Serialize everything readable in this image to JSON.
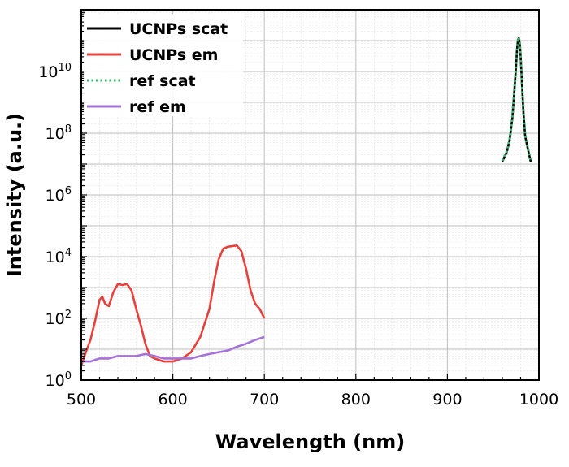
{
  "chart_data": {
    "type": "line",
    "xlabel": "Wavelength (nm)",
    "ylabel": "Intensity (a.u.)",
    "xlim": [
      500,
      1000
    ],
    "ylim": [
      1,
      1000000000000.0
    ],
    "y_scale": "log",
    "x_ticks": [
      500,
      600,
      700,
      800,
      900,
      1000
    ],
    "x_tick_labels": [
      "500",
      "600",
      "700",
      "800",
      "900",
      "1000"
    ],
    "y_ticks": [
      {
        "value": 1,
        "base": "10",
        "exp": "0"
      },
      {
        "value": 100,
        "base": "10",
        "exp": "2"
      },
      {
        "value": 10000,
        "base": "10",
        "exp": "4"
      },
      {
        "value": 1000000,
        "base": "10",
        "exp": "6"
      },
      {
        "value": 100000000,
        "base": "10",
        "exp": "8"
      },
      {
        "value": 10000000000,
        "base": "10",
        "exp": "10"
      }
    ],
    "grid": true,
    "legend_position": "top-left",
    "series": [
      {
        "name": "UCNPs scat",
        "color": "#000000",
        "style": "solid",
        "x": [
          960,
          965,
          968,
          971,
          973,
          975,
          976,
          977,
          978,
          979,
          980,
          981,
          983,
          985,
          988,
          991
        ],
        "y": [
          12000000.0,
          25000000.0,
          60000000.0,
          300000000.0,
          2000000000.0,
          15000000000.0,
          50000000000.0,
          100000000000.0,
          120000000000.0,
          80000000000.0,
          30000000000.0,
          8000000000.0,
          500000000.0,
          80000000.0,
          30000000.0,
          12000000.0
        ]
      },
      {
        "name": "UCNPs em",
        "color": "#e8413c",
        "style": "solid",
        "x": [
          500,
          505,
          510,
          515,
          520,
          523,
          526,
          530,
          535,
          540,
          545,
          550,
          555,
          560,
          565,
          570,
          575,
          580,
          590,
          600,
          610,
          620,
          630,
          640,
          645,
          650,
          655,
          660,
          665,
          670,
          675,
          680,
          685,
          690,
          695,
          700
        ],
        "y": [
          3,
          8,
          20,
          80,
          400,
          500,
          300,
          250,
          700,
          1300,
          1200,
          1300,
          800,
          200,
          60,
          15,
          6,
          5,
          4,
          4,
          5,
          8,
          25,
          200,
          1500,
          8000,
          18000,
          21000,
          22000,
          23000,
          15000,
          4000,
          800,
          300,
          200,
          100
        ]
      },
      {
        "name": "ref scat",
        "color": "#3cb371",
        "style": "dotted",
        "x": [
          960,
          965,
          968,
          971,
          973,
          975,
          976,
          977,
          978,
          979,
          980,
          981,
          983,
          985,
          988,
          991
        ],
        "y": [
          13000000.0,
          26000000.0,
          65000000.0,
          320000000.0,
          2100000000.0,
          16000000000.0,
          52000000000.0,
          105000000000.0,
          125000000000.0,
          85000000000.0,
          32000000000.0,
          8500000000.0,
          530000000.0,
          85000000.0,
          32000000.0,
          13000000.0
        ]
      },
      {
        "name": "ref em",
        "color": "#a571d8",
        "style": "solid",
        "x": [
          500,
          510,
          520,
          530,
          540,
          550,
          560,
          570,
          580,
          590,
          600,
          610,
          620,
          630,
          640,
          650,
          660,
          670,
          680,
          690,
          700
        ],
        "y": [
          4,
          4,
          5,
          5,
          6,
          6,
          6,
          7,
          6,
          5,
          5,
          5,
          5,
          6,
          7,
          8,
          9,
          12,
          15,
          20,
          25
        ]
      }
    ]
  }
}
